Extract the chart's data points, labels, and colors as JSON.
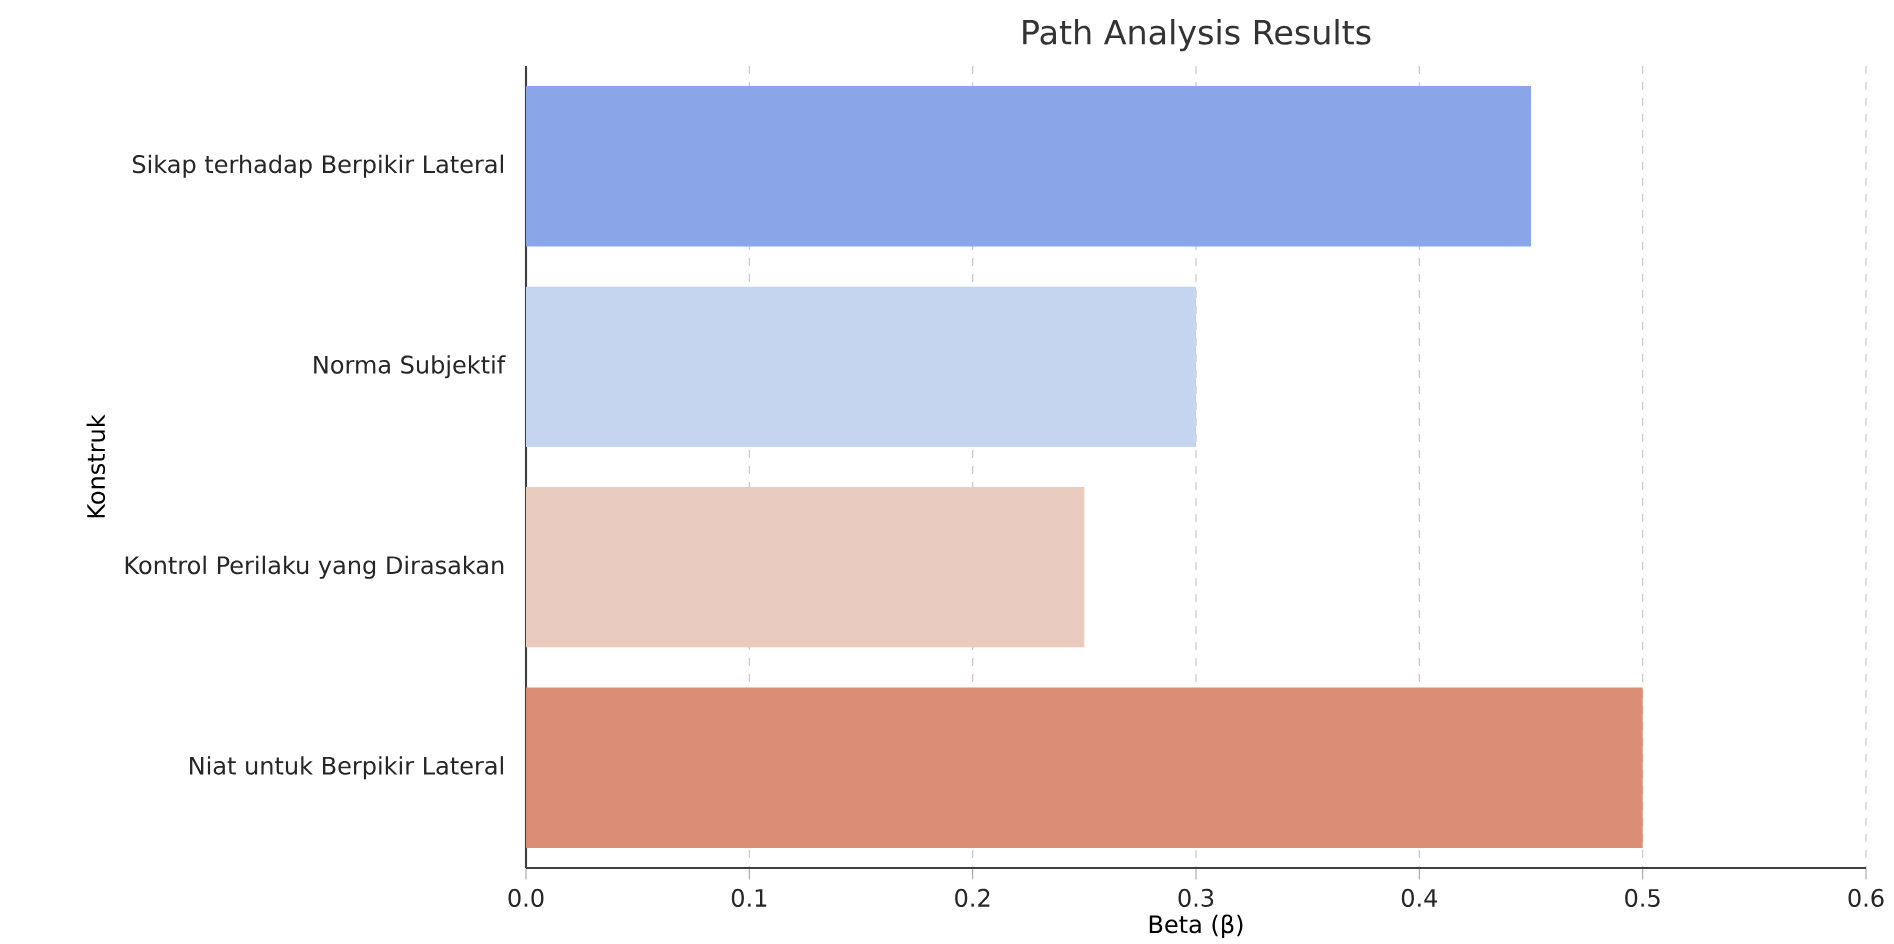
{
  "chart_data": {
    "type": "bar",
    "orientation": "horizontal",
    "title": "Path Analysis Results",
    "xlabel": "Beta (β)",
    "ylabel": "Konstruk",
    "categories": [
      "Sikap terhadap Berpikir Lateral",
      "Norma Subjektif",
      "Kontrol Perilaku yang Dirasakan",
      "Niat untuk Berpikir Lateral"
    ],
    "values": [
      0.45,
      0.3,
      0.25,
      0.5
    ],
    "colors": [
      "#8aa6e8",
      "#c6d5ef",
      "#e9ccbf",
      "#dc8d76"
    ],
    "xlim": [
      0,
      0.6
    ],
    "xticks": [
      {
        "value": 0,
        "label": "0.0"
      },
      0.1,
      0.2,
      0.3,
      0.4,
      0.5,
      0.6
    ],
    "grid": "x"
  }
}
